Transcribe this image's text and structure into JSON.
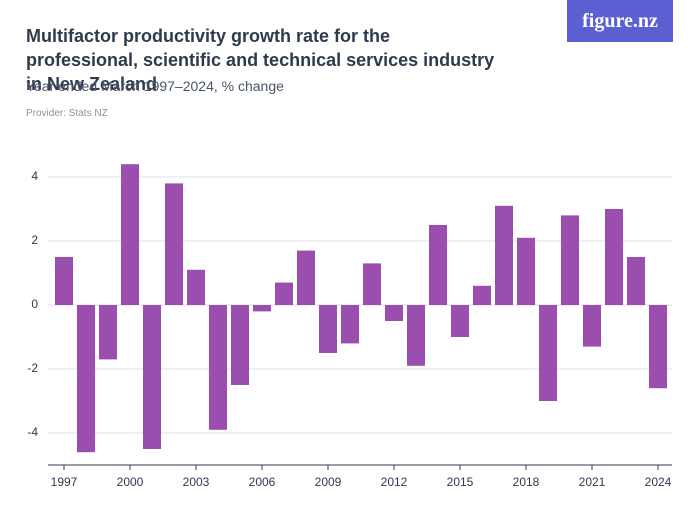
{
  "chart_data": {
    "type": "bar",
    "title": "Multifactor productivity growth rate for the professional, scientific and technical services industry in New Zealand",
    "subtitle": "Year ended March 1997–2024, % change",
    "provider": "Provider: Stats NZ",
    "logo": "figure.nz",
    "categories": [
      "1997",
      null,
      null,
      "2000",
      null,
      null,
      "2003",
      null,
      null,
      "2006",
      null,
      null,
      "2009",
      null,
      null,
      "2012",
      null,
      null,
      "2015",
      null,
      null,
      "2018",
      null,
      null,
      "2021",
      null,
      null,
      "2024"
    ],
    "values": [
      1.5,
      -4.6,
      -1.7,
      4.4,
      -4.5,
      3.8,
      1.1,
      -3.9,
      -2.5,
      -0.2,
      0.7,
      1.7,
      -1.5,
      -1.2,
      1.3,
      -0.5,
      -1.9,
      2.5,
      -1.0,
      0.6,
      3.1,
      2.1,
      -3.0,
      2.8,
      -1.3,
      3.0,
      1.5,
      -2.6
    ],
    "color": "#9a4eae",
    "ylim": [
      -5,
      5
    ],
    "yticks": [
      -4,
      -2,
      0,
      2,
      4
    ],
    "grid": true
  }
}
